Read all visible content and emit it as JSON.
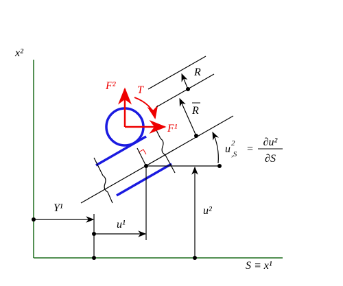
{
  "axes": {
    "vertical_label": "x²",
    "horizontal_label": "S ≡ x¹"
  },
  "dimensions": {
    "Y": "Y¹",
    "u1": "u¹",
    "u2": "u²",
    "R": "R",
    "R_bar": "R"
  },
  "forces": {
    "F2": "F²",
    "F1": "F¹",
    "T": "T"
  },
  "equation": {
    "lhs": "u",
    "lhs_sup": "2",
    "lhs_sub": ",S",
    "equals": "=",
    "numerator": "∂u²",
    "denominator": "∂S"
  }
}
